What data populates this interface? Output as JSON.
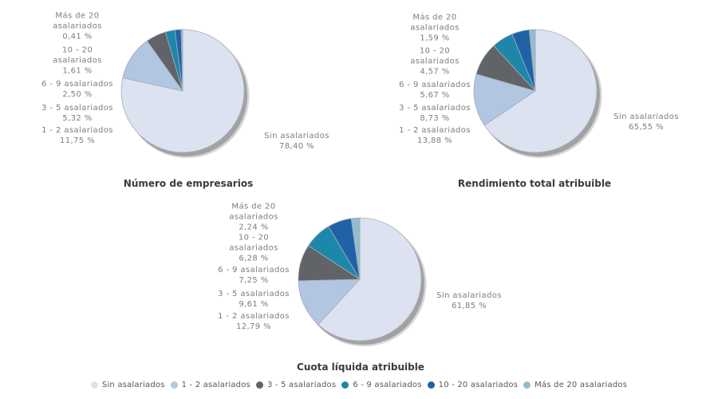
{
  "legend": {
    "items": [
      {
        "label": "Sin asalariados",
        "color": "#dde2f1"
      },
      {
        "label": "1 - 2 asalariados",
        "color": "#b1c6e1"
      },
      {
        "label": "3 - 5 asalariados",
        "color": "#606469"
      },
      {
        "label": "6 - 9 asalariados",
        "color": "#1d87a9"
      },
      {
        "label": "10 - 20 asalariados",
        "color": "#2062a6"
      },
      {
        "label": "Más de 20 asalariados",
        "color": "#93bdce"
      }
    ]
  },
  "chart_data": [
    {
      "type": "pie",
      "title": "Número de empresarios",
      "legend_position": "bottom",
      "categories": [
        "Sin asalariados",
        "1 - 2 asalariados",
        "3 - 5 asalariados",
        "6 - 9 asalariados",
        "10 - 20 asalariados",
        "Más de 20 asalariados"
      ],
      "values": [
        78.4,
        11.75,
        5.32,
        2.5,
        1.61,
        0.41
      ],
      "labels": [
        [
          "Sin asalariados",
          "78,40 %"
        ],
        [
          "1 - 2 asalariados",
          "11,75 %"
        ],
        [
          "3 - 5 asalariados",
          "5,32 %"
        ],
        [
          "6 - 9 asalariados",
          "2,50 %"
        ],
        [
          "10 - 20",
          "asalariados",
          "1,61 %"
        ],
        [
          "Más de 20",
          "asalariados",
          "0,41 %"
        ]
      ]
    },
    {
      "type": "pie",
      "title": "Rendimiento total atribuible",
      "legend_position": "bottom",
      "categories": [
        "Sin asalariados",
        "1 - 2 asalariados",
        "3 - 5 asalariados",
        "6 - 9 asalariados",
        "10 - 20 asalariados",
        "Más de 20 asalariados"
      ],
      "values": [
        65.55,
        13.88,
        8.73,
        5.67,
        4.57,
        1.59
      ],
      "labels": [
        [
          "Sin asalariados",
          "65,55 %"
        ],
        [
          "1 - 2 asalariados",
          "13,88 %"
        ],
        [
          "3 - 5 asalariados",
          "8,73 %"
        ],
        [
          "6 - 9 asalariados",
          "5,67 %"
        ],
        [
          "10 - 20",
          "asalariados",
          "4,57 %"
        ],
        [
          "Más de 20",
          "asalariados",
          "1,59 %"
        ]
      ]
    },
    {
      "type": "pie",
      "title": "Cuota líquida atribuible",
      "legend_position": "bottom",
      "categories": [
        "Sin asalariados",
        "1 - 2 asalariados",
        "3 - 5 asalariados",
        "6 - 9 asalariados",
        "10 - 20 asalariados",
        "Más de 20 asalariados"
      ],
      "values": [
        61.85,
        12.79,
        9.61,
        7.25,
        6.28,
        2.24
      ],
      "labels": [
        [
          "Sin asalariados",
          "61,85 %"
        ],
        [
          "1 - 2 asalariados",
          "12,79 %"
        ],
        [
          "3 - 5 asalariados",
          "9,61 %"
        ],
        [
          "6 - 9 asalariados",
          "7,25 %"
        ],
        [
          "10 - 20",
          "asalariados",
          "6,28 %"
        ],
        [
          "Más de 20",
          "asalariados",
          "2,24 %"
        ]
      ]
    }
  ],
  "style": {
    "shadow_color": "#a2a2a2",
    "slice_stroke": "#a6adb9"
  }
}
